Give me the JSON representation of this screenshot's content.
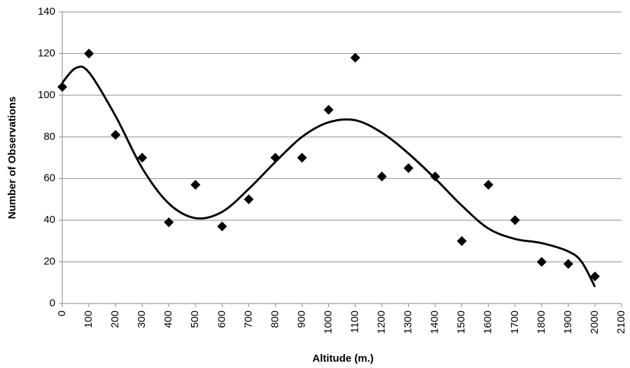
{
  "chart_data": {
    "type": "scatter",
    "xlabel": "Altitude (m.)",
    "ylabel": "Number of Observations",
    "xlim": [
      0,
      2100
    ],
    "xticks": [
      0,
      100,
      200,
      300,
      400,
      500,
      600,
      700,
      800,
      900,
      1000,
      1100,
      1200,
      1300,
      1400,
      1500,
      1600,
      1700,
      1800,
      1900,
      2000,
      2100
    ],
    "ylim": [
      0,
      140
    ],
    "yticks": [
      0,
      20,
      40,
      60,
      80,
      100,
      120,
      140
    ],
    "grid": true,
    "series": [
      {
        "type": "scatter",
        "color": "#000000",
        "x": [
          0,
          100,
          200,
          300,
          400,
          500,
          600,
          700,
          800,
          900,
          1000,
          1100,
          1200,
          1300,
          1400,
          1500,
          1600,
          1700,
          1800,
          1900,
          2000
        ],
        "values": [
          104,
          120,
          81,
          70,
          39,
          57,
          37,
          50,
          70,
          70,
          93,
          118,
          61,
          65,
          61,
          30,
          57,
          40,
          20,
          19,
          13
        ]
      },
      {
        "type": "line",
        "color": "#000000",
        "x": [
          0,
          50,
          100,
          200,
          300,
          400,
          500,
          600,
          700,
          800,
          900,
          1000,
          1100,
          1200,
          1300,
          1400,
          1500,
          1600,
          1700,
          1800,
          1900,
          1950,
          2000
        ],
        "values": [
          106,
          113,
          111,
          90,
          65,
          48,
          41,
          44,
          55,
          68,
          80,
          87,
          88,
          82,
          72,
          60,
          47,
          36,
          31,
          29,
          25,
          20,
          8
        ]
      }
    ]
  }
}
